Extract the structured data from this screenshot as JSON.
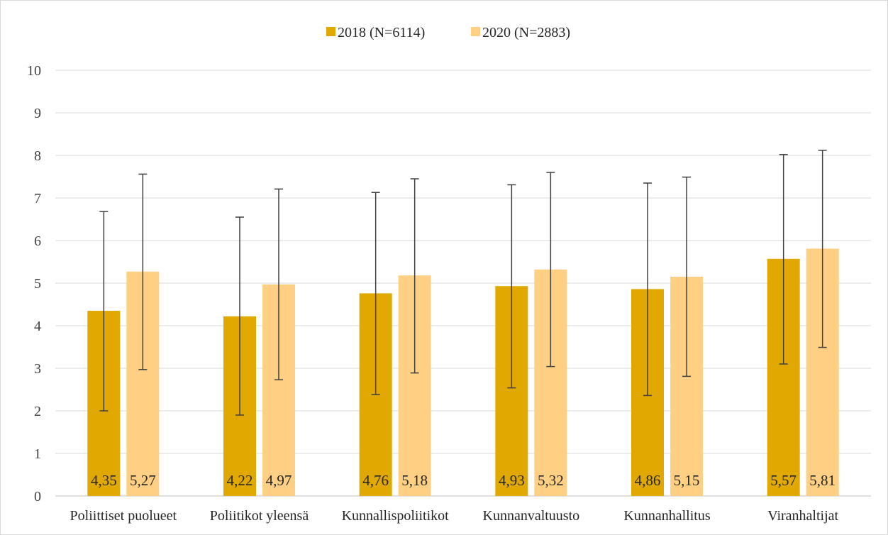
{
  "chart_data": {
    "type": "bar",
    "title": "",
    "xlabel": "",
    "ylabel": "",
    "ylim": [
      0,
      10
    ],
    "yticks": [
      "0",
      "1",
      "2",
      "3",
      "4",
      "5",
      "6",
      "7",
      "8",
      "9",
      "10"
    ],
    "grid": true,
    "legend_position": "top-center",
    "categories": [
      "Poliittiset puolueet",
      "Poliitikot yleensä",
      "Kunnallispoliitikot",
      "Kunnanvaltuusto",
      "Kunnanhallitus",
      "Viranhaltijat"
    ],
    "series": [
      {
        "name": "2018 (N=6114)",
        "color": "#e0a800",
        "values": [
          4.35,
          4.22,
          4.76,
          4.93,
          4.86,
          5.57
        ],
        "labels": [
          "4,35",
          "4,22",
          "4,76",
          "4,93",
          "4,86",
          "5,57"
        ],
        "error_low": [
          2.0,
          1.9,
          2.38,
          2.54,
          2.36,
          3.1
        ],
        "error_high": [
          6.68,
          6.55,
          7.13,
          7.31,
          7.35,
          8.02
        ]
      },
      {
        "name": "2020 (N=2883)",
        "color": "#ffd083",
        "values": [
          5.27,
          4.97,
          5.18,
          5.32,
          5.15,
          5.81
        ],
        "labels": [
          "5,27",
          "4,97",
          "5,18",
          "5,32",
          "5,15",
          "5,81"
        ],
        "error_low": [
          2.97,
          2.73,
          2.89,
          3.04,
          2.81,
          3.49
        ],
        "error_high": [
          7.56,
          7.21,
          7.45,
          7.6,
          7.49,
          8.12
        ]
      }
    ]
  }
}
